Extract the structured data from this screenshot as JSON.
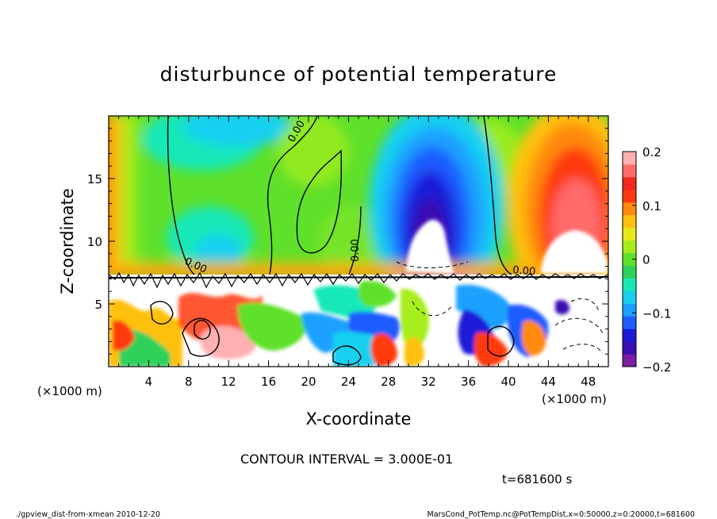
{
  "chart_data": {
    "type": "heatmap",
    "title": "disturbunce of potential temperature",
    "xlabel": "X-coordinate",
    "ylabel": "Z-coordinate",
    "x_unit_left": "(×1000 m)",
    "x_unit_right": "(×1000 m)",
    "xlim": [
      0,
      50
    ],
    "ylim": [
      0,
      20
    ],
    "x_ticks": [
      4,
      8,
      12,
      16,
      20,
      24,
      28,
      32,
      36,
      40,
      44,
      48
    ],
    "y_ticks": [
      5,
      10,
      15
    ],
    "colorbar": {
      "range": [
        -0.2,
        0.2
      ],
      "tick_values": [
        -0.2,
        -0.1,
        0,
        0.1,
        0.2
      ],
      "tick_labels": [
        "−0.2",
        "−0.1",
        "0",
        "0.1",
        "0.2"
      ],
      "colors": [
        "#7a1fa2",
        "#3a0fb0",
        "#1a1ad8",
        "#1f5bff",
        "#1aa0ff",
        "#17d0f0",
        "#18e8b8",
        "#2ed15a",
        "#5fe02a",
        "#a6ee1a",
        "#e6ea1a",
        "#ffc010",
        "#ff8a10",
        "#ff3a10",
        "#f0281c",
        "#ff6a6a",
        "#ffb0b0"
      ]
    },
    "contour_labels": [
      "0.00",
      "0.00",
      "0.00",
      "0.00"
    ],
    "contour_interval_text": "CONTOUR INTERVAL = 3.000E-01",
    "time_text": "t=681600 s",
    "footer_left": "./gpview_dist-from-xmean  2010-12-20",
    "footer_right": "MarsCond_PotTemp.nc@PotTempDist,x=0:50000,z=0:20000,t=681600"
  }
}
